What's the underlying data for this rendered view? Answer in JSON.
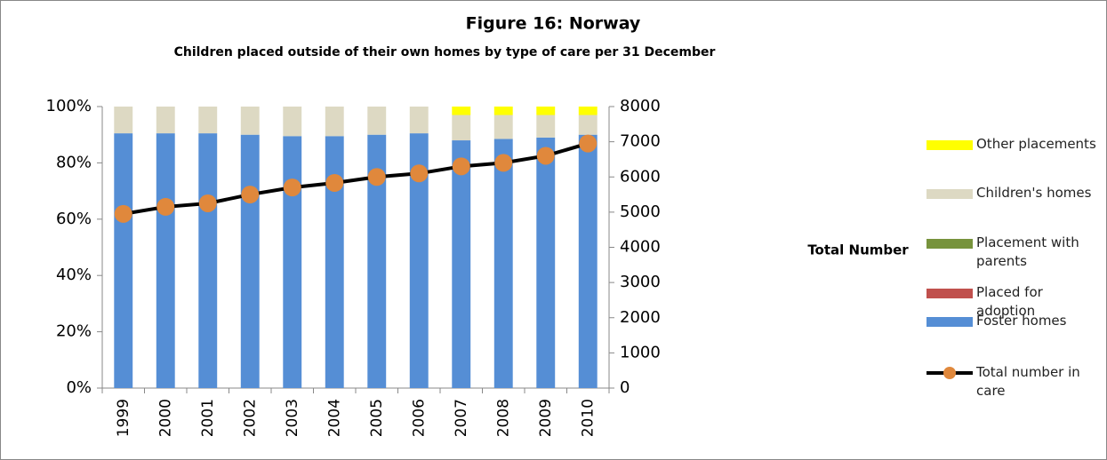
{
  "chart_data": {
    "type": "bar",
    "stacked": true,
    "title": "Figure 16: Norway",
    "subtitle": "Children placed outside of their own homes  by type of care per 31 December",
    "y2label": "Total Number",
    "categories": [
      "1999",
      "2000",
      "2001",
      "2002",
      "2003",
      "2004",
      "2005",
      "2006",
      "2007",
      "2008",
      "2009",
      "2010"
    ],
    "series": [
      {
        "name": "Foster homes",
        "color": "#558ed5",
        "values": [
          90.5,
          90.5,
          90.5,
          90,
          89.5,
          89.5,
          90,
          90.5,
          88,
          88.5,
          89,
          90
        ]
      },
      {
        "name": "Placed for adoption",
        "color": "#c0504d",
        "values": [
          0,
          0,
          0,
          0,
          0,
          0,
          0,
          0,
          0,
          0,
          0,
          0
        ]
      },
      {
        "name": "Placement with parents",
        "color": "#77933c",
        "values": [
          0,
          0,
          0,
          0,
          0,
          0,
          0,
          0,
          0,
          0,
          0,
          0
        ]
      },
      {
        "name": "Children's homes",
        "color": "#ddd9c3",
        "values": [
          9.5,
          9.5,
          9.5,
          10,
          10.5,
          10.5,
          10,
          9.5,
          9,
          8.5,
          8,
          7
        ]
      },
      {
        "name": "Other placements",
        "color": "#ffff00",
        "values": [
          0,
          0,
          0,
          0,
          0,
          0,
          0,
          0,
          3,
          3,
          3,
          3
        ]
      },
      {
        "name": "Total number in care",
        "color": "#000000",
        "marker_color": "#e0883c",
        "type": "line",
        "axis": "y2",
        "values": [
          4950,
          5150,
          5250,
          5500,
          5700,
          5830,
          6000,
          6100,
          6300,
          6400,
          6600,
          6950
        ]
      }
    ],
    "ylim": [
      0,
      100
    ],
    "yticks": [
      {
        "value": 0,
        "label": "0%"
      },
      {
        "value": 20,
        "label": "20%"
      },
      {
        "value": 40,
        "label": "40%"
      },
      {
        "value": 60,
        "label": "60%"
      },
      {
        "value": 80,
        "label": "80%"
      },
      {
        "value": 100,
        "label": "100%"
      }
    ],
    "y2lim": [
      0,
      8000
    ],
    "y2ticks": [
      0,
      1000,
      2000,
      3000,
      4000,
      5000,
      6000,
      7000,
      8000
    ],
    "grid": false
  }
}
